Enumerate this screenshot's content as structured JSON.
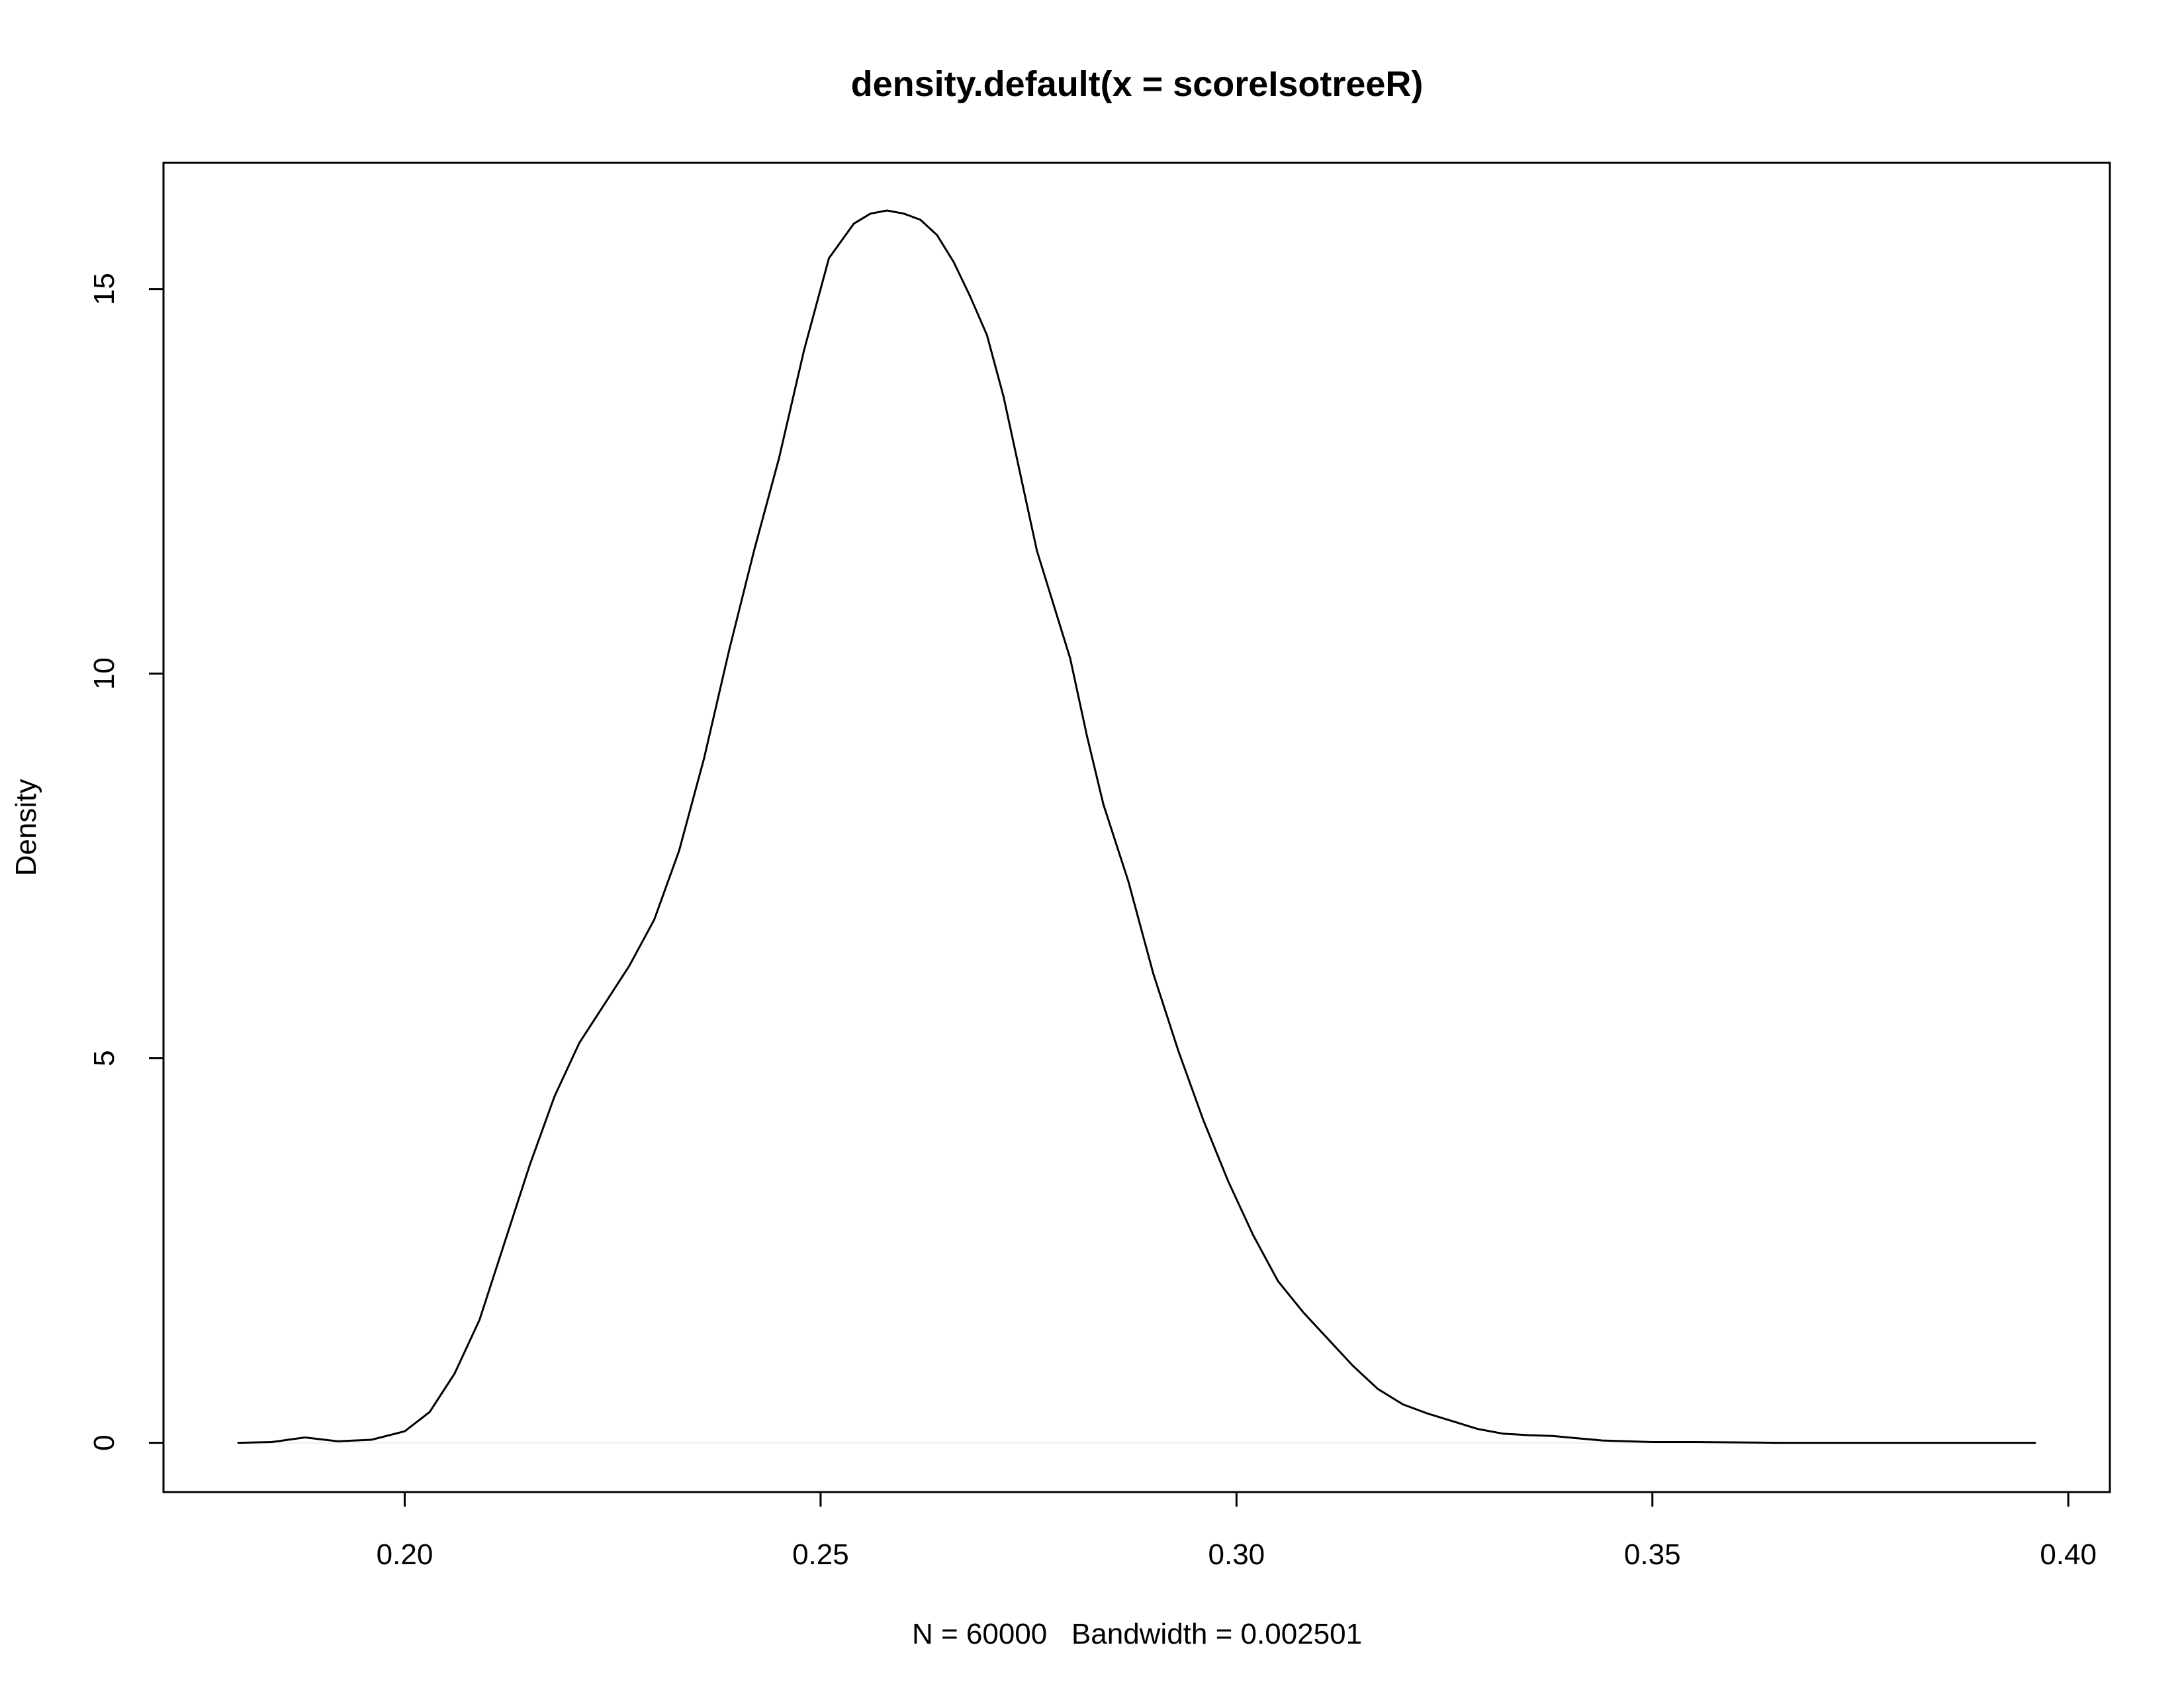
{
  "chart_data": {
    "type": "line",
    "title": "density.default(x = scoreIsotreeR)",
    "xlabel": "N = 60000   Bandwidth = 0.002501",
    "ylabel": "Density",
    "xlim": [
      0.171,
      0.405
    ],
    "ylim": [
      -0.64,
      16.64
    ],
    "x_ticks": [
      {
        "value": 0.2,
        "label": "0.20"
      },
      {
        "value": 0.25,
        "label": "0.25"
      },
      {
        "value": 0.3,
        "label": "0.30"
      },
      {
        "value": 0.35,
        "label": "0.35"
      },
      {
        "value": 0.4,
        "label": "0.40"
      }
    ],
    "y_ticks": [
      {
        "value": 0,
        "label": "0"
      },
      {
        "value": 5,
        "label": "5"
      },
      {
        "value": 10,
        "label": "10"
      },
      {
        "value": 15,
        "label": "15"
      }
    ],
    "zero_line": true,
    "grid": false,
    "legend": "none",
    "line_color": "#000000",
    "zero_line_color": "#eeeeee",
    "series": [
      {
        "x": [
          0.18,
          0.184,
          0.188,
          0.192,
          0.196,
          0.2,
          0.203,
          0.206,
          0.209,
          0.212,
          0.215,
          0.218,
          0.221,
          0.224,
          0.227,
          0.23,
          0.233,
          0.236,
          0.239,
          0.242,
          0.245,
          0.248,
          0.251,
          0.254,
          0.256,
          0.258,
          0.26,
          0.262,
          0.264,
          0.266,
          0.268,
          0.27,
          0.272,
          0.274,
          0.276,
          0.278,
          0.28,
          0.282,
          0.284,
          0.287,
          0.29,
          0.293,
          0.296,
          0.299,
          0.302,
          0.305,
          0.308,
          0.311,
          0.314,
          0.317,
          0.32,
          0.323,
          0.326,
          0.329,
          0.332,
          0.335,
          0.338,
          0.341,
          0.344,
          0.347,
          0.35,
          0.355,
          0.36,
          0.365,
          0.37,
          0.375,
          0.38,
          0.385,
          0.39,
          0.396
        ],
        "y": [
          0.0,
          0.01,
          0.07,
          0.02,
          0.04,
          0.15,
          0.4,
          0.9,
          1.6,
          2.6,
          3.6,
          4.5,
          5.2,
          5.7,
          6.2,
          6.8,
          7.7,
          8.9,
          10.3,
          11.6,
          12.8,
          14.2,
          15.4,
          15.85,
          15.98,
          16.02,
          15.98,
          15.9,
          15.7,
          15.35,
          14.9,
          14.4,
          13.6,
          12.6,
          11.6,
          10.9,
          10.2,
          9.2,
          8.3,
          7.3,
          6.1,
          5.1,
          4.2,
          3.4,
          2.7,
          2.1,
          1.7,
          1.35,
          1.0,
          0.7,
          0.5,
          0.38,
          0.28,
          0.18,
          0.12,
          0.1,
          0.09,
          0.06,
          0.03,
          0.02,
          0.01,
          0.01,
          0.005,
          0.0,
          0.0,
          0.0,
          0.0,
          0.0,
          0.0,
          0.0
        ]
      }
    ]
  }
}
